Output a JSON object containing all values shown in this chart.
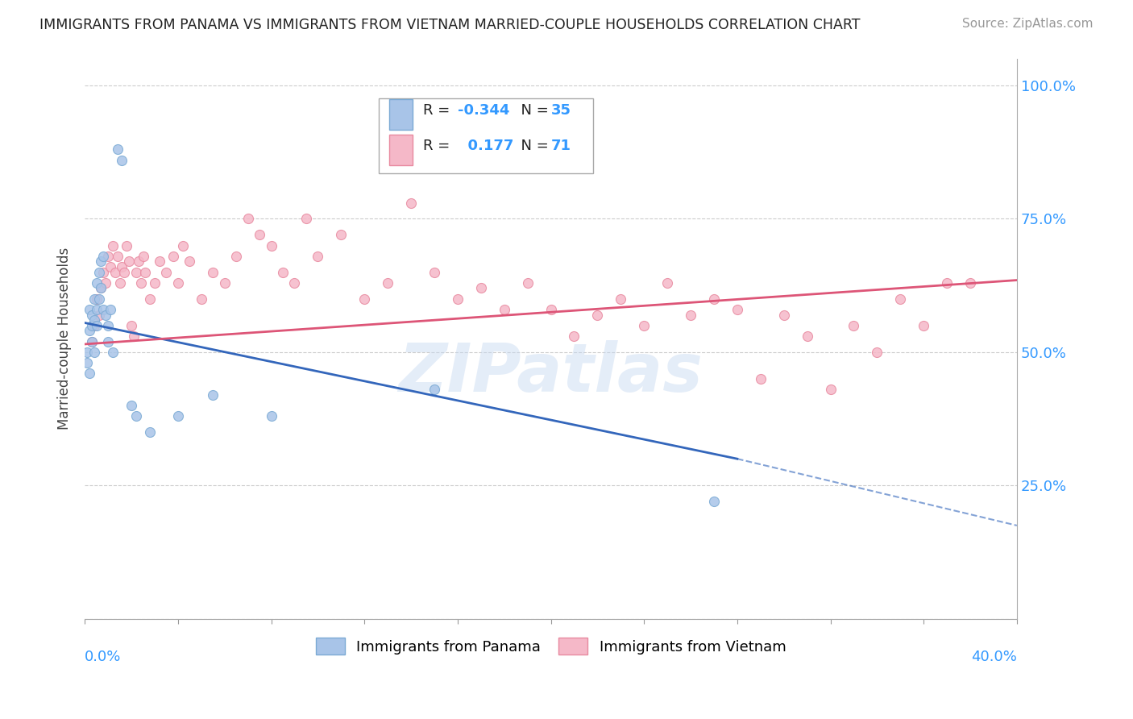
{
  "title": "IMMIGRANTS FROM PANAMA VS IMMIGRANTS FROM VIETNAM MARRIED-COUPLE HOUSEHOLDS CORRELATION CHART",
  "source": "Source: ZipAtlas.com",
  "ylabel": "Married-couple Households",
  "xmin": 0.0,
  "xmax": 0.4,
  "ymin": 0.0,
  "ymax": 1.05,
  "watermark": "ZIPatlas",
  "panama_color": "#a8c4e8",
  "panama_edge": "#7baad4",
  "vietnam_color": "#f5b8c8",
  "vietnam_edge": "#e88aa0",
  "trend_panama_color": "#3366bb",
  "trend_vietnam_color": "#dd5577",
  "legend_text_color": "#3399ff",
  "R_panama": -0.344,
  "N_panama": 35,
  "R_vietnam": 0.177,
  "N_vietnam": 71,
  "panama_x": [
    0.001,
    0.001,
    0.002,
    0.002,
    0.002,
    0.003,
    0.003,
    0.003,
    0.004,
    0.004,
    0.004,
    0.005,
    0.005,
    0.005,
    0.006,
    0.006,
    0.007,
    0.007,
    0.008,
    0.008,
    0.009,
    0.01,
    0.01,
    0.011,
    0.012,
    0.014,
    0.016,
    0.02,
    0.022,
    0.028,
    0.04,
    0.055,
    0.08,
    0.15,
    0.27
  ],
  "panama_y": [
    0.5,
    0.48,
    0.54,
    0.58,
    0.46,
    0.55,
    0.57,
    0.52,
    0.6,
    0.5,
    0.56,
    0.63,
    0.58,
    0.55,
    0.65,
    0.6,
    0.67,
    0.62,
    0.68,
    0.58,
    0.57,
    0.55,
    0.52,
    0.58,
    0.5,
    0.88,
    0.86,
    0.4,
    0.38,
    0.35,
    0.38,
    0.42,
    0.38,
    0.43,
    0.22
  ],
  "vietnam_x": [
    0.003,
    0.004,
    0.005,
    0.006,
    0.007,
    0.008,
    0.009,
    0.01,
    0.011,
    0.012,
    0.013,
    0.014,
    0.015,
    0.016,
    0.017,
    0.018,
    0.019,
    0.02,
    0.021,
    0.022,
    0.023,
    0.024,
    0.025,
    0.026,
    0.028,
    0.03,
    0.032,
    0.035,
    0.038,
    0.04,
    0.042,
    0.045,
    0.05,
    0.055,
    0.06,
    0.065,
    0.07,
    0.075,
    0.08,
    0.085,
    0.09,
    0.095,
    0.1,
    0.11,
    0.12,
    0.13,
    0.14,
    0.15,
    0.16,
    0.17,
    0.18,
    0.19,
    0.2,
    0.21,
    0.22,
    0.23,
    0.24,
    0.25,
    0.26,
    0.27,
    0.28,
    0.29,
    0.3,
    0.31,
    0.32,
    0.33,
    0.34,
    0.35,
    0.36,
    0.37,
    0.38
  ],
  "vietnam_y": [
    0.52,
    0.55,
    0.6,
    0.57,
    0.62,
    0.65,
    0.63,
    0.68,
    0.66,
    0.7,
    0.65,
    0.68,
    0.63,
    0.66,
    0.65,
    0.7,
    0.67,
    0.55,
    0.53,
    0.65,
    0.67,
    0.63,
    0.68,
    0.65,
    0.6,
    0.63,
    0.67,
    0.65,
    0.68,
    0.63,
    0.7,
    0.67,
    0.6,
    0.65,
    0.63,
    0.68,
    0.75,
    0.72,
    0.7,
    0.65,
    0.63,
    0.75,
    0.68,
    0.72,
    0.6,
    0.63,
    0.78,
    0.65,
    0.6,
    0.62,
    0.58,
    0.63,
    0.58,
    0.53,
    0.57,
    0.6,
    0.55,
    0.63,
    0.57,
    0.6,
    0.58,
    0.45,
    0.57,
    0.53,
    0.43,
    0.55,
    0.5,
    0.6,
    0.55,
    0.63,
    0.63
  ],
  "pan_trend_x0": 0.0,
  "pan_trend_y0": 0.555,
  "pan_trend_x1": 0.28,
  "pan_trend_y1": 0.3,
  "pan_trend_xd": 0.4,
  "pan_trend_yd": 0.175,
  "vie_trend_x0": 0.0,
  "vie_trend_y0": 0.515,
  "vie_trend_x1": 0.4,
  "vie_trend_y1": 0.635
}
